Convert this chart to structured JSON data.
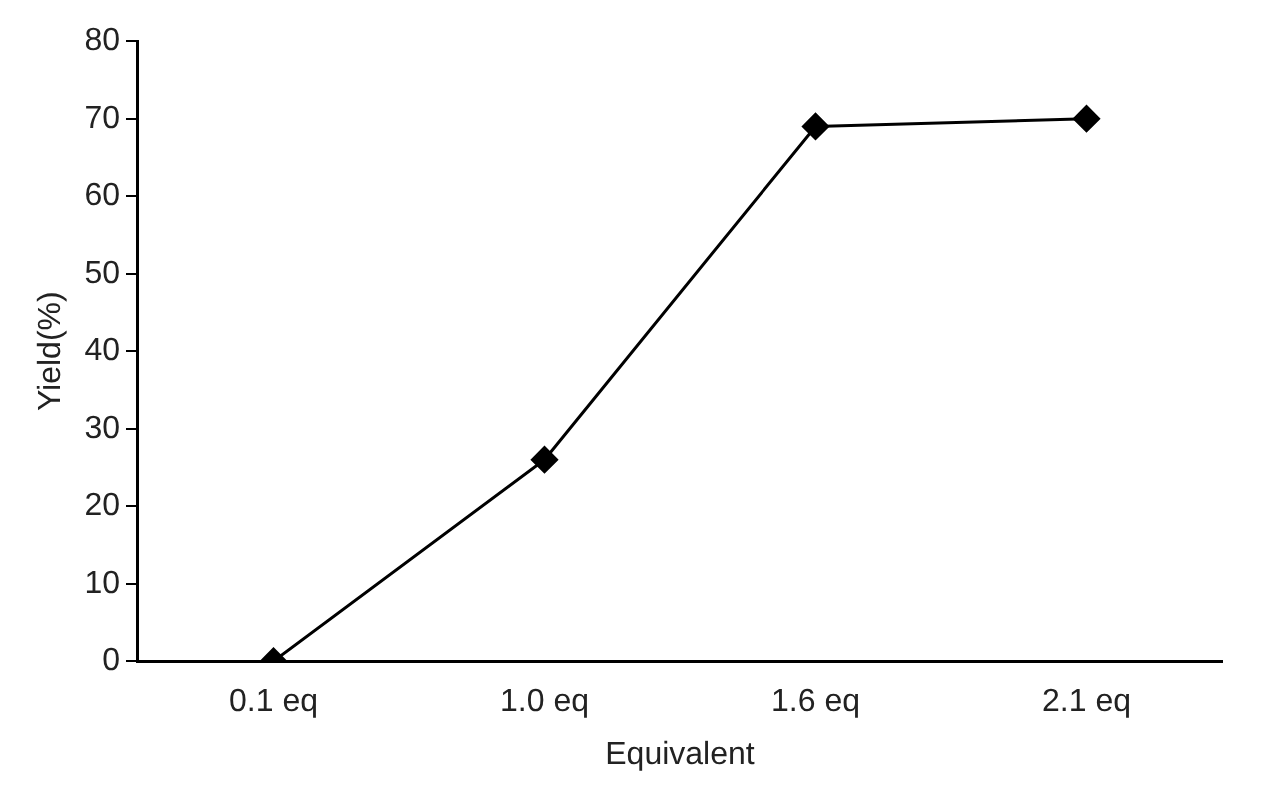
{
  "chart_data": {
    "type": "line",
    "xlabel": "Equivalent",
    "ylabel": "Yield(%)",
    "categories": [
      "0.1 eq",
      "1.0 eq",
      "1.6 eq",
      "2.1 eq"
    ],
    "series": [
      {
        "color": "#000000",
        "values": [
          0,
          26,
          69,
          70
        ]
      }
    ],
    "ylim": [
      0,
      80
    ],
    "yticks": [
      0,
      10,
      20,
      30,
      40,
      50,
      60,
      70,
      80
    ],
    "grid": false,
    "legend": false,
    "marker": "diamond",
    "line_style": "solid"
  }
}
